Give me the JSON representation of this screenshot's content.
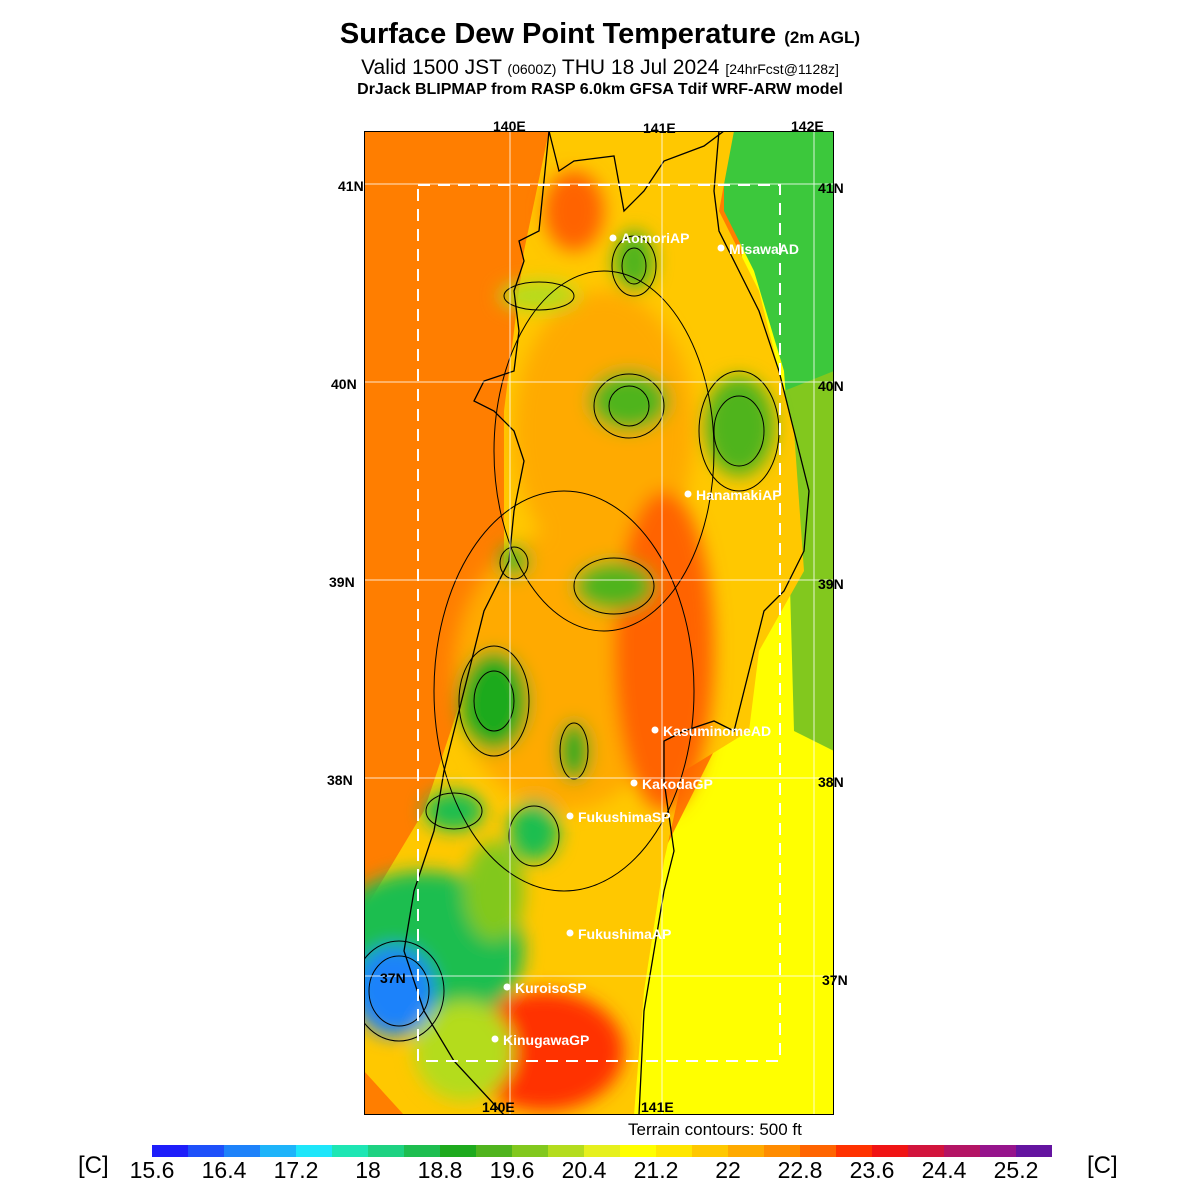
{
  "header": {
    "title": "Surface Dew Point Temperature",
    "title_suffix": "(2m AGL)",
    "valid_prefix": "Valid 1500 JST",
    "valid_utc": "(0600Z)",
    "valid_date": "THU 18 Jul 2024",
    "forecast": "[24hrFcst@1128z]",
    "model_line": "DrJack BLIPMAP from RASP 6.0km GFSA Tdif WRF-ARW model"
  },
  "axes": {
    "lon_top": [
      "140E",
      "141E",
      "142E"
    ],
    "lon_bottom": [
      "140E",
      "141E"
    ],
    "lat_left": [
      "41N",
      "40N",
      "39N",
      "38N",
      "37N"
    ],
    "lat_right": [
      "41N",
      "40N",
      "39N",
      "38N",
      "37N"
    ]
  },
  "stations": [
    "AomoriAP",
    "MisawaAD",
    "HanamakiAP",
    "KasuminomeAD",
    "KakodaGP",
    "FukushimaSP",
    "FukushimaAP",
    "KuroisoSP",
    "KinugawaGP"
  ],
  "footer": {
    "terrain_note": "Terrain contours: 500 ft",
    "unit_left": "[C]",
    "unit_right": "[C]"
  },
  "colorbar": {
    "labels": [
      "15.6",
      "16.4",
      "17.2",
      "18",
      "18.8",
      "19.6",
      "20.4",
      "21.2",
      "22",
      "22.8",
      "23.6",
      "24.4",
      "25.2"
    ],
    "colors": [
      "#1e1efa",
      "#1e50fa",
      "#1e82fa",
      "#1eb4fa",
      "#1ee6fa",
      "#1ee6b4",
      "#1ed282",
      "#1ebe50",
      "#1eaa1e",
      "#50b41e",
      "#82c81e",
      "#b4dc1e",
      "#e6f01e",
      "#ffff00",
      "#ffe600",
      "#ffc800",
      "#ffaa00",
      "#ff8c00",
      "#ff6400",
      "#ff3200",
      "#f01414",
      "#d2143c",
      "#b41464",
      "#96148c",
      "#6414a0"
    ]
  },
  "palette": {
    "sea_west": "#ff7e00",
    "sea_east_south": "#ffff00",
    "sea_east_north": "#3cc83c",
    "grid": "#ffffff",
    "coast": "#000000",
    "station_dot": "#ffffff"
  }
}
